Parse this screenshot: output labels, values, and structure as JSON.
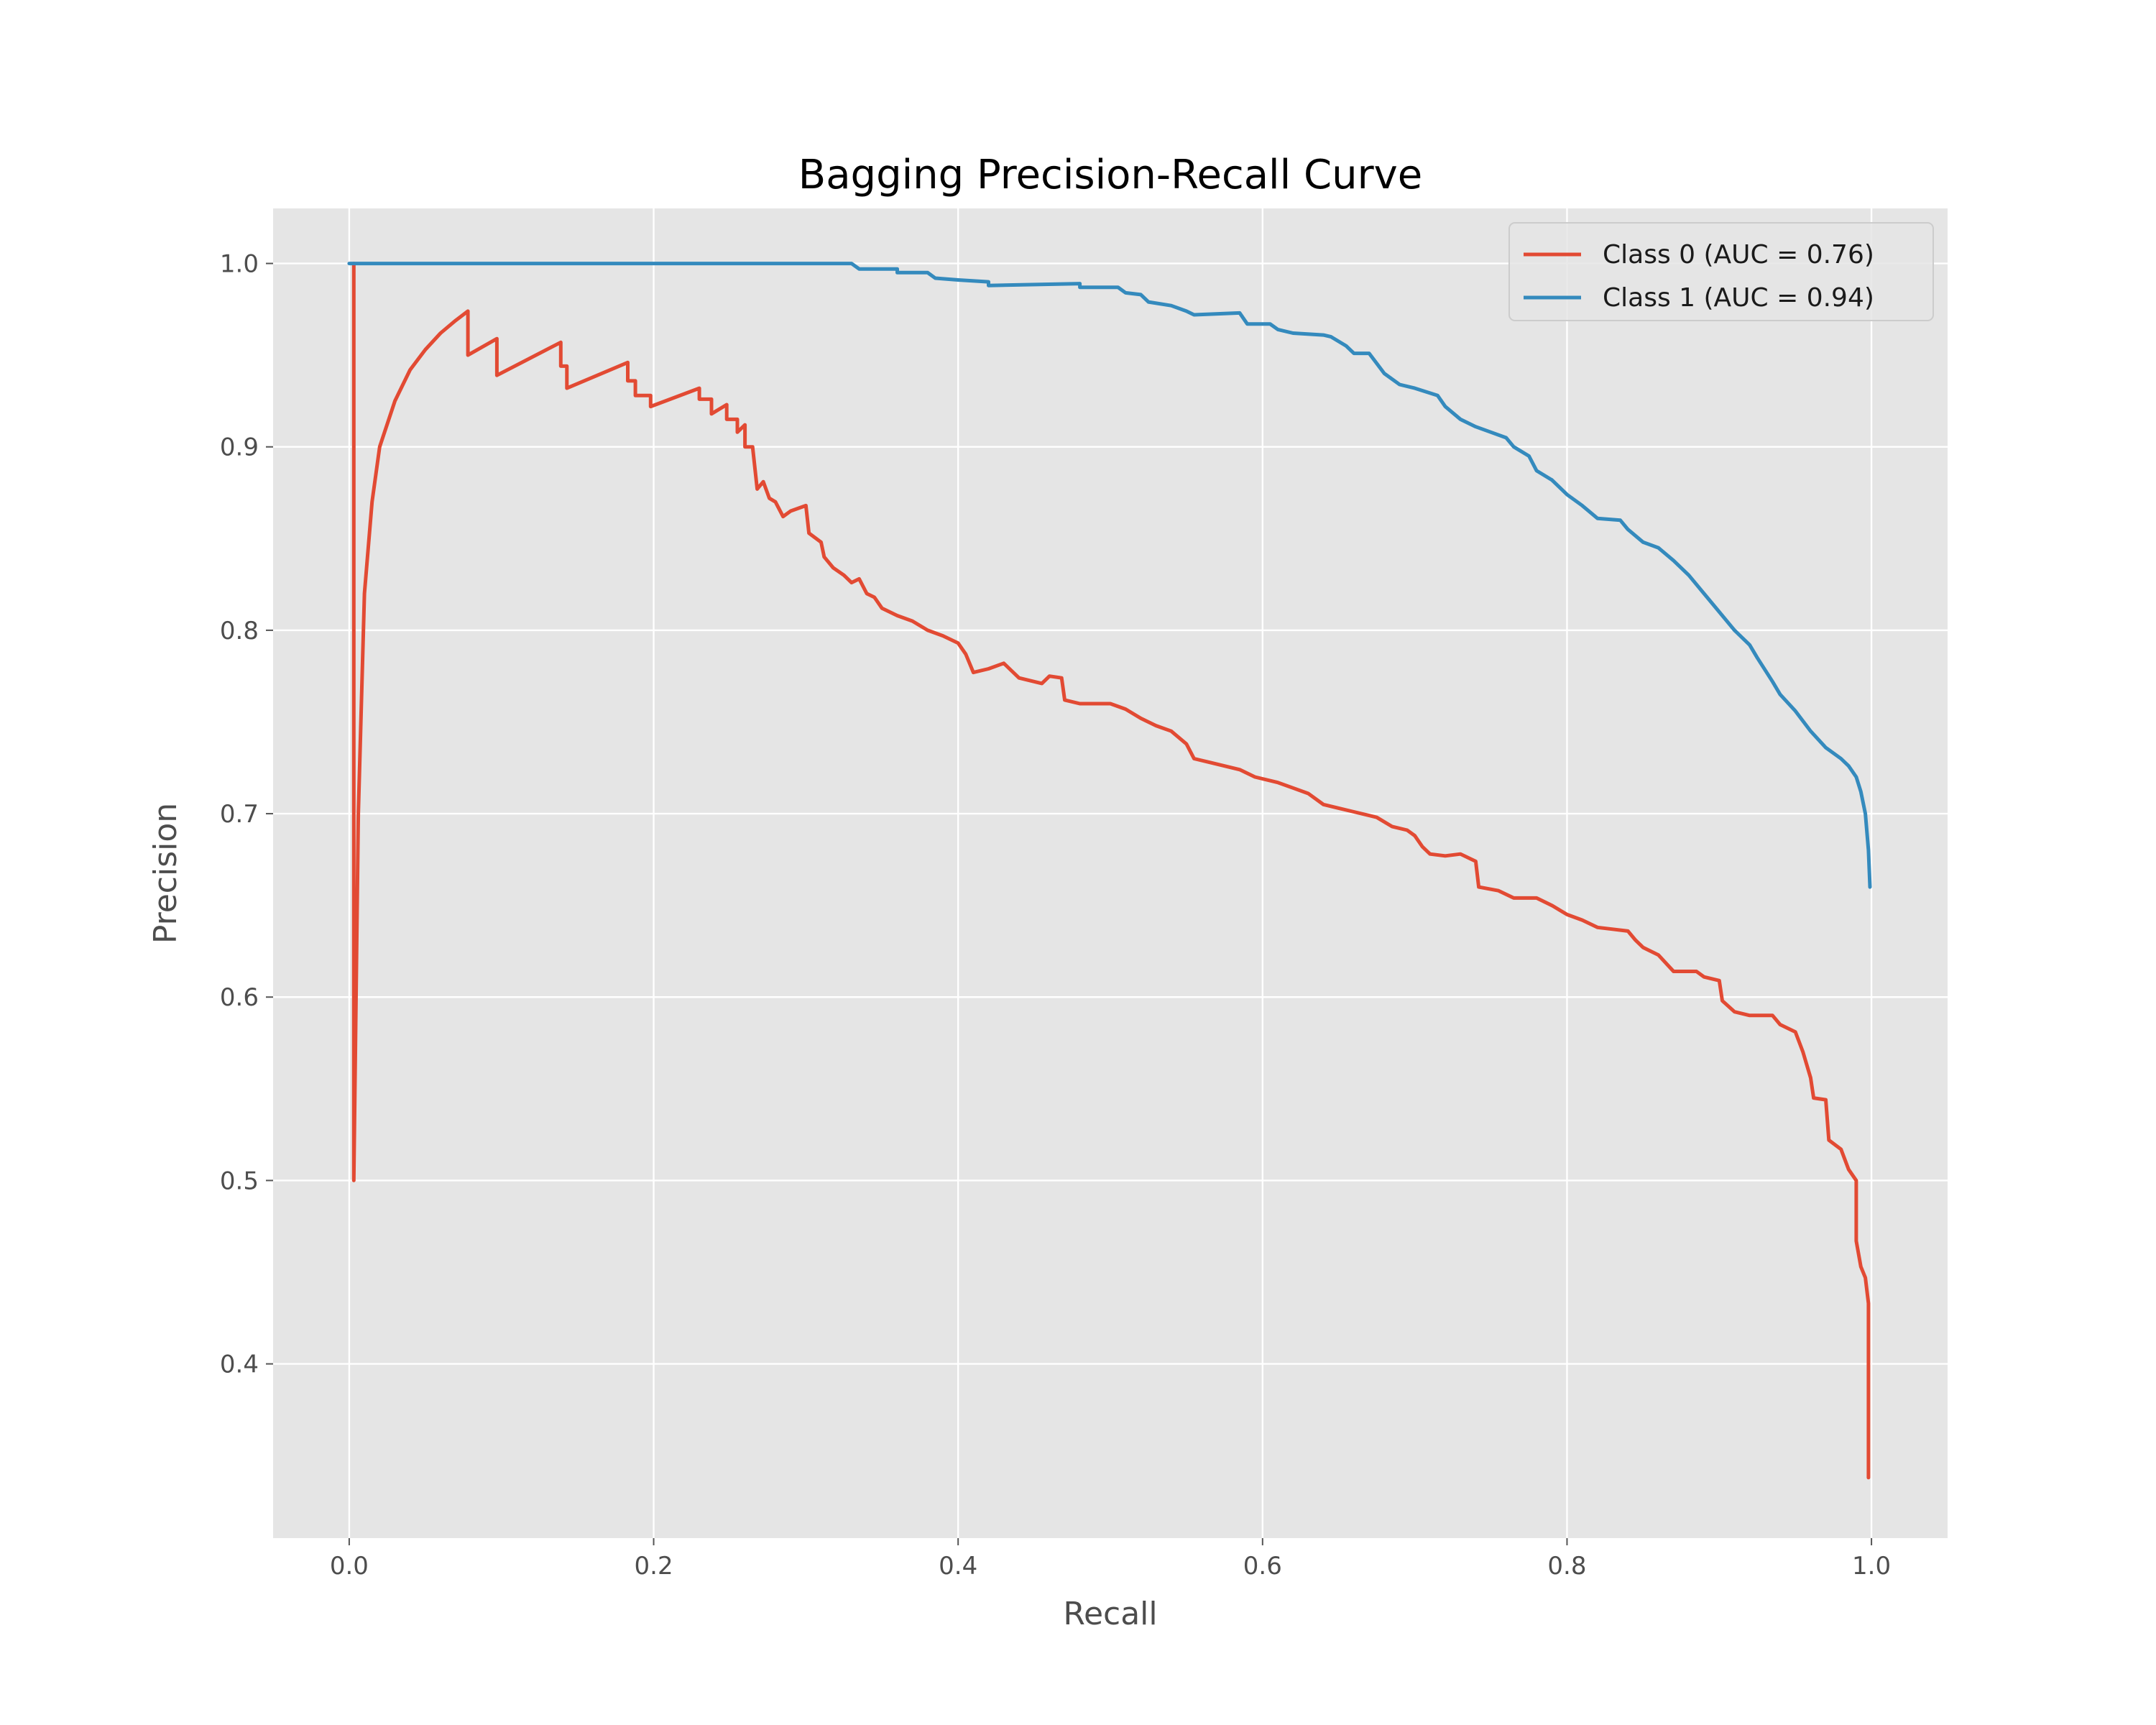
{
  "chart_data": {
    "type": "line",
    "title": "Bagging Precision-Recall Curve",
    "xlabel": "Recall",
    "ylabel": "Precision",
    "xlim": [
      -0.05,
      1.05
    ],
    "ylim": [
      0.305,
      1.03
    ],
    "grid": true,
    "legend_position": "top-right",
    "x_ticks": [
      0.0,
      0.2,
      0.4,
      0.6,
      0.8,
      1.0
    ],
    "x_tick_labels": [
      "0.0",
      "0.2",
      "0.4",
      "0.6",
      "0.8",
      "1.0"
    ],
    "y_ticks": [
      0.4,
      0.5,
      0.6,
      0.7,
      0.8,
      0.9,
      1.0
    ],
    "y_tick_labels": [
      "0.4",
      "0.5",
      "0.6",
      "0.7",
      "0.8",
      "0.9",
      "1.0"
    ],
    "colors": {
      "background": "#e5e5e5",
      "grid": "#ffffff"
    },
    "series": [
      {
        "name": "Class 0 (AUC = 0.76)",
        "color": "#e24a33",
        "points": [
          [
            0.003,
            1.0
          ],
          [
            0.003,
            0.5
          ],
          [
            0.006,
            0.7
          ],
          [
            0.01,
            0.82
          ],
          [
            0.015,
            0.87
          ],
          [
            0.02,
            0.9
          ],
          [
            0.03,
            0.925
          ],
          [
            0.04,
            0.942
          ],
          [
            0.05,
            0.953
          ],
          [
            0.06,
            0.962
          ],
          [
            0.07,
            0.969
          ],
          [
            0.078,
            0.974
          ],
          [
            0.078,
            0.95
          ],
          [
            0.097,
            0.959
          ],
          [
            0.097,
            0.939
          ],
          [
            0.139,
            0.957
          ],
          [
            0.139,
            0.944
          ],
          [
            0.143,
            0.944
          ],
          [
            0.143,
            0.932
          ],
          [
            0.183,
            0.946
          ],
          [
            0.183,
            0.936
          ],
          [
            0.188,
            0.936
          ],
          [
            0.188,
            0.928
          ],
          [
            0.198,
            0.928
          ],
          [
            0.198,
            0.922
          ],
          [
            0.23,
            0.932
          ],
          [
            0.23,
            0.926
          ],
          [
            0.238,
            0.926
          ],
          [
            0.238,
            0.918
          ],
          [
            0.248,
            0.923
          ],
          [
            0.248,
            0.915
          ],
          [
            0.255,
            0.915
          ],
          [
            0.255,
            0.908
          ],
          [
            0.26,
            0.912
          ],
          [
            0.26,
            0.9
          ],
          [
            0.265,
            0.9
          ],
          [
            0.268,
            0.877
          ],
          [
            0.272,
            0.881
          ],
          [
            0.276,
            0.872
          ],
          [
            0.28,
            0.87
          ],
          [
            0.285,
            0.862
          ],
          [
            0.29,
            0.865
          ],
          [
            0.3,
            0.868
          ],
          [
            0.302,
            0.853
          ],
          [
            0.31,
            0.848
          ],
          [
            0.312,
            0.84
          ],
          [
            0.318,
            0.834
          ],
          [
            0.325,
            0.83
          ],
          [
            0.33,
            0.826
          ],
          [
            0.335,
            0.828
          ],
          [
            0.34,
            0.82
          ],
          [
            0.345,
            0.818
          ],
          [
            0.35,
            0.812
          ],
          [
            0.36,
            0.808
          ],
          [
            0.37,
            0.805
          ],
          [
            0.38,
            0.8
          ],
          [
            0.39,
            0.797
          ],
          [
            0.4,
            0.793
          ],
          [
            0.405,
            0.787
          ],
          [
            0.41,
            0.777
          ],
          [
            0.42,
            0.779
          ],
          [
            0.43,
            0.782
          ],
          [
            0.435,
            0.778
          ],
          [
            0.44,
            0.774
          ],
          [
            0.455,
            0.771
          ],
          [
            0.46,
            0.775
          ],
          [
            0.468,
            0.774
          ],
          [
            0.47,
            0.762
          ],
          [
            0.48,
            0.76
          ],
          [
            0.5,
            0.76
          ],
          [
            0.51,
            0.757
          ],
          [
            0.52,
            0.752
          ],
          [
            0.53,
            0.748
          ],
          [
            0.54,
            0.745
          ],
          [
            0.55,
            0.738
          ],
          [
            0.555,
            0.73
          ],
          [
            0.565,
            0.728
          ],
          [
            0.575,
            0.726
          ],
          [
            0.585,
            0.724
          ],
          [
            0.595,
            0.72
          ],
          [
            0.61,
            0.717
          ],
          [
            0.62,
            0.714
          ],
          [
            0.63,
            0.711
          ],
          [
            0.64,
            0.705
          ],
          [
            0.65,
            0.703
          ],
          [
            0.66,
            0.701
          ],
          [
            0.675,
            0.698
          ],
          [
            0.685,
            0.693
          ],
          [
            0.695,
            0.691
          ],
          [
            0.7,
            0.688
          ],
          [
            0.705,
            0.682
          ],
          [
            0.71,
            0.678
          ],
          [
            0.72,
            0.677
          ],
          [
            0.73,
            0.678
          ],
          [
            0.74,
            0.674
          ],
          [
            0.742,
            0.66
          ],
          [
            0.755,
            0.658
          ],
          [
            0.765,
            0.654
          ],
          [
            0.78,
            0.654
          ],
          [
            0.79,
            0.65
          ],
          [
            0.8,
            0.645
          ],
          [
            0.81,
            0.642
          ],
          [
            0.82,
            0.638
          ],
          [
            0.83,
            0.637
          ],
          [
            0.84,
            0.636
          ],
          [
            0.845,
            0.631
          ],
          [
            0.85,
            0.627
          ],
          [
            0.86,
            0.623
          ],
          [
            0.87,
            0.614
          ],
          [
            0.885,
            0.614
          ],
          [
            0.89,
            0.611
          ],
          [
            0.9,
            0.609
          ],
          [
            0.902,
            0.598
          ],
          [
            0.91,
            0.592
          ],
          [
            0.92,
            0.59
          ],
          [
            0.935,
            0.59
          ],
          [
            0.94,
            0.585
          ],
          [
            0.95,
            0.581
          ],
          [
            0.955,
            0.57
          ],
          [
            0.96,
            0.556
          ],
          [
            0.962,
            0.545
          ],
          [
            0.97,
            0.544
          ],
          [
            0.972,
            0.522
          ],
          [
            0.98,
            0.517
          ],
          [
            0.985,
            0.506
          ],
          [
            0.99,
            0.5
          ],
          [
            0.99,
            0.467
          ],
          [
            0.993,
            0.453
          ],
          [
            0.996,
            0.447
          ],
          [
            0.998,
            0.433
          ],
          [
            0.998,
            0.338
          ]
        ]
      },
      {
        "name": "Class 1 (AUC = 0.94)",
        "color": "#348abd",
        "points": [
          [
            0.0,
            1.0
          ],
          [
            0.33,
            1.0
          ],
          [
            0.335,
            0.997
          ],
          [
            0.36,
            0.997
          ],
          [
            0.36,
            0.995
          ],
          [
            0.38,
            0.995
          ],
          [
            0.385,
            0.992
          ],
          [
            0.4,
            0.991
          ],
          [
            0.42,
            0.99
          ],
          [
            0.42,
            0.988
          ],
          [
            0.48,
            0.989
          ],
          [
            0.48,
            0.987
          ],
          [
            0.505,
            0.987
          ],
          [
            0.51,
            0.984
          ],
          [
            0.52,
            0.983
          ],
          [
            0.525,
            0.979
          ],
          [
            0.54,
            0.977
          ],
          [
            0.55,
            0.974
          ],
          [
            0.555,
            0.972
          ],
          [
            0.585,
            0.973
          ],
          [
            0.59,
            0.967
          ],
          [
            0.605,
            0.967
          ],
          [
            0.61,
            0.964
          ],
          [
            0.62,
            0.962
          ],
          [
            0.64,
            0.961
          ],
          [
            0.645,
            0.96
          ],
          [
            0.655,
            0.955
          ],
          [
            0.66,
            0.951
          ],
          [
            0.67,
            0.951
          ],
          [
            0.68,
            0.94
          ],
          [
            0.69,
            0.934
          ],
          [
            0.7,
            0.932
          ],
          [
            0.715,
            0.928
          ],
          [
            0.72,
            0.922
          ],
          [
            0.73,
            0.915
          ],
          [
            0.74,
            0.911
          ],
          [
            0.75,
            0.908
          ],
          [
            0.76,
            0.905
          ],
          [
            0.765,
            0.9
          ],
          [
            0.775,
            0.895
          ],
          [
            0.78,
            0.887
          ],
          [
            0.79,
            0.882
          ],
          [
            0.8,
            0.874
          ],
          [
            0.81,
            0.868
          ],
          [
            0.82,
            0.861
          ],
          [
            0.835,
            0.86
          ],
          [
            0.84,
            0.855
          ],
          [
            0.85,
            0.848
          ],
          [
            0.86,
            0.845
          ],
          [
            0.87,
            0.838
          ],
          [
            0.88,
            0.83
          ],
          [
            0.89,
            0.82
          ],
          [
            0.9,
            0.81
          ],
          [
            0.91,
            0.8
          ],
          [
            0.92,
            0.792
          ],
          [
            0.925,
            0.785
          ],
          [
            0.935,
            0.772
          ],
          [
            0.94,
            0.765
          ],
          [
            0.95,
            0.756
          ],
          [
            0.96,
            0.745
          ],
          [
            0.97,
            0.736
          ],
          [
            0.98,
            0.73
          ],
          [
            0.985,
            0.726
          ],
          [
            0.99,
            0.72
          ],
          [
            0.993,
            0.712
          ],
          [
            0.996,
            0.7
          ],
          [
            0.998,
            0.68
          ],
          [
            0.999,
            0.66
          ]
        ]
      }
    ]
  }
}
